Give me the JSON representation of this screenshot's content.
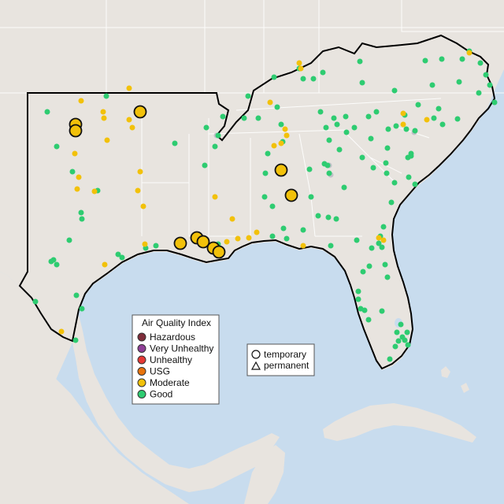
{
  "legend": {
    "title": "Air Quality Index",
    "items": [
      {
        "label": "Hazardous",
        "color": "#7e2d3a"
      },
      {
        "label": "Very Unhealthy",
        "color": "#8f3f97"
      },
      {
        "label": "Unhealthy",
        "color": "#e53935"
      },
      {
        "label": "USG",
        "color": "#e8730c"
      },
      {
        "label": "Moderate",
        "color": "#f2c10a"
      },
      {
        "label": "Good",
        "color": "#2ecc71"
      }
    ]
  },
  "shape_legend": {
    "temporary": "temporary",
    "permanent": "permanent"
  },
  "colors": {
    "ocean": "#c8dcee",
    "land": "#e8e4df",
    "region_outline": "#000000",
    "inactive_site": "#c0c0c8"
  },
  "monitors": {
    "good": [
      [
        60,
        142
      ],
      [
        72,
        186
      ],
      [
        92,
        218
      ],
      [
        103,
        270
      ],
      [
        88,
        305
      ],
      [
        68,
        330
      ],
      [
        72,
        336
      ],
      [
        65,
        332
      ],
      [
        104,
        278
      ],
      [
        97,
        375
      ],
      [
        104,
        392
      ],
      [
        96,
        432
      ],
      [
        45,
        383
      ],
      [
        124,
        242
      ],
      [
        135,
        122
      ],
      [
        150,
        323
      ],
      [
        155,
        327
      ],
      [
        185,
        315
      ],
      [
        198,
        312
      ],
      [
        222,
        182
      ],
      [
        260,
        210
      ],
      [
        262,
        162
      ],
      [
        277,
        172
      ],
      [
        273,
        186
      ],
      [
        283,
        148
      ],
      [
        310,
        150
      ],
      [
        315,
        122
      ],
      [
        328,
        150
      ],
      [
        348,
        98
      ],
      [
        352,
        136
      ],
      [
        357,
        158
      ],
      [
        359,
        180
      ],
      [
        340,
        195
      ],
      [
        337,
        220
      ],
      [
        336,
        250
      ],
      [
        346,
        262
      ],
      [
        360,
        290
      ],
      [
        346,
        300
      ],
      [
        364,
        303
      ],
      [
        385,
        292
      ],
      [
        380,
        87
      ],
      [
        385,
        100
      ],
      [
        398,
        100
      ],
      [
        407,
        142
      ],
      [
        410,
        92
      ],
      [
        414,
        162
      ],
      [
        418,
        178
      ],
      [
        424,
        150
      ],
      [
        428,
        158
      ],
      [
        431,
        190
      ],
      [
        439,
        148
      ],
      [
        440,
        168
      ],
      [
        412,
        208
      ],
      [
        416,
        210
      ],
      [
        418,
        220
      ],
      [
        393,
        215
      ],
      [
        395,
        250
      ],
      [
        404,
        274
      ],
      [
        417,
        276
      ],
      [
        420,
        312
      ],
      [
        427,
        278
      ],
      [
        437,
        238
      ],
      [
        450,
        162
      ],
      [
        457,
        78
      ],
      [
        460,
        105
      ],
      [
        460,
        200
      ],
      [
        468,
        148
      ],
      [
        471,
        176
      ],
      [
        478,
        142
      ],
      [
        493,
        164
      ],
      [
        492,
        188
      ],
      [
        490,
        207
      ],
      [
        491,
        220
      ],
      [
        497,
        257
      ],
      [
        501,
        232
      ],
      [
        519,
        225
      ],
      [
        522,
        195
      ],
      [
        527,
        234
      ],
      [
        474,
        213
      ],
      [
        453,
        305
      ],
      [
        461,
        345
      ],
      [
        469,
        338
      ],
      [
        472,
        315
      ],
      [
        481,
        309
      ],
      [
        483,
        300
      ],
      [
        485,
        314
      ],
      [
        489,
        336
      ],
      [
        492,
        352
      ],
      [
        487,
        288
      ],
      [
        501,
        115
      ],
      [
        503,
        160
      ],
      [
        514,
        146
      ],
      [
        516,
        164
      ],
      [
        527,
        166
      ],
      [
        531,
        133
      ],
      [
        540,
        77
      ],
      [
        549,
        108
      ],
      [
        551,
        150
      ],
      [
        557,
        138
      ],
      [
        561,
        75
      ],
      [
        562,
        158
      ],
      [
        581,
        151
      ],
      [
        583,
        104
      ],
      [
        587,
        75
      ],
      [
        596,
        65
      ],
      [
        608,
        118
      ],
      [
        610,
        80
      ],
      [
        617,
        95
      ],
      [
        622,
        108
      ],
      [
        628,
        130
      ],
      [
        518,
        200
      ],
      [
        522,
        198
      ],
      [
        455,
        370
      ],
      [
        455,
        380
      ],
      [
        458,
        392
      ],
      [
        463,
        394
      ],
      [
        468,
        406
      ],
      [
        485,
        395
      ],
      [
        504,
        422
      ],
      [
        509,
        412
      ],
      [
        511,
        428
      ],
      [
        514,
        432
      ],
      [
        517,
        422
      ],
      [
        518,
        438
      ],
      [
        506,
        433
      ],
      [
        502,
        440
      ],
      [
        495,
        456
      ],
      [
        277,
        310
      ]
    ],
    "moderate": [
      [
        103,
        128
      ],
      [
        131,
        142
      ],
      [
        132,
        150
      ],
      [
        136,
        178
      ],
      [
        164,
        152
      ],
      [
        168,
        162
      ],
      [
        164,
        112
      ],
      [
        100,
        225
      ],
      [
        98,
        240
      ],
      [
        120,
        243
      ],
      [
        175,
        242
      ],
      [
        178,
        218
      ],
      [
        182,
        262
      ],
      [
        184,
        310
      ],
      [
        133,
        336
      ],
      [
        78,
        421
      ],
      [
        95,
        195
      ],
      [
        273,
        250
      ],
      [
        295,
        278
      ],
      [
        288,
        307
      ],
      [
        302,
        303
      ],
      [
        316,
        302
      ],
      [
        326,
        295
      ],
      [
        343,
        130
      ],
      [
        348,
        185
      ],
      [
        362,
        164
      ],
      [
        364,
        172
      ],
      [
        357,
        182
      ],
      [
        385,
        312
      ],
      [
        380,
        80
      ],
      [
        382,
        87
      ],
      [
        512,
        158
      ],
      [
        512,
        144
      ],
      [
        542,
        152
      ],
      [
        596,
        67
      ],
      [
        481,
        302
      ],
      [
        487,
        305
      ]
    ],
    "moderate_large": [
      [
        96,
        158
      ],
      [
        96,
        166
      ],
      [
        178,
        142
      ],
      [
        357,
        216
      ],
      [
        370,
        248
      ],
      [
        229,
        309
      ],
      [
        250,
        302
      ],
      [
        258,
        307
      ],
      [
        271,
        315
      ],
      [
        278,
        320
      ]
    ],
    "inactive": [
      [
        275,
        172
      ],
      [
        418,
        210
      ],
      [
        526,
        168
      ],
      [
        420,
        222
      ]
    ]
  }
}
